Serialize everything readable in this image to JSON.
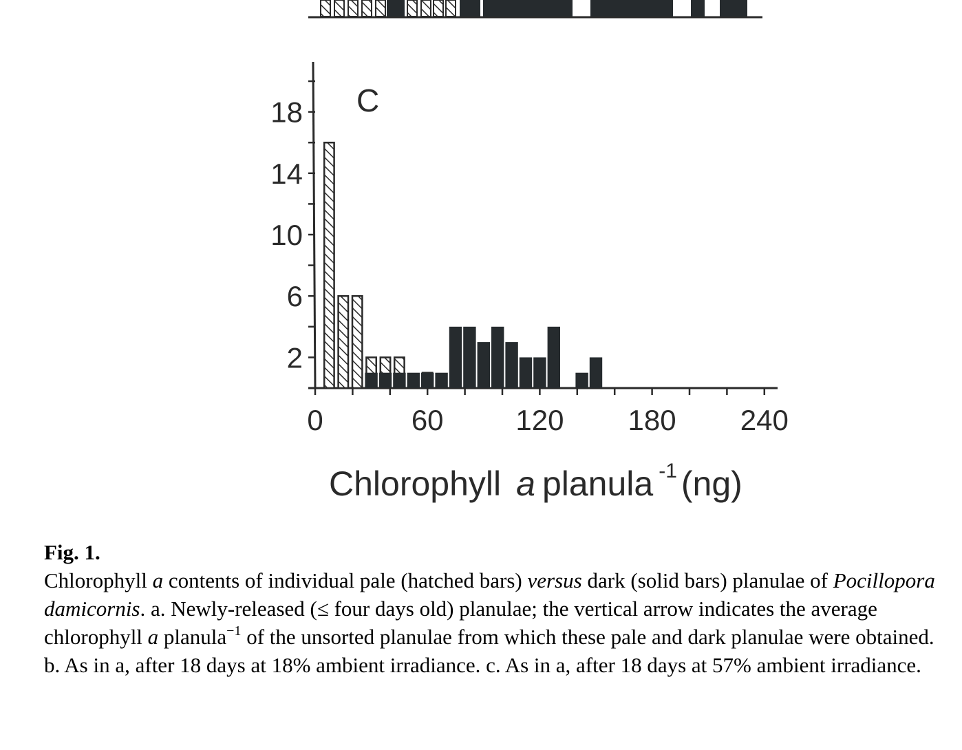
{
  "chart_data": {
    "type": "bar",
    "panel_label": "C",
    "xlabel": "Chlorophyll",
    "xlabel_italic": "a",
    "xlabel_rest": "planula",
    "xlabel_sup": "-1",
    "xlabel_unit": "(ng)",
    "x_ticks": [
      "0",
      "60",
      "120",
      "180",
      "240"
    ],
    "y_ticks": [
      "2",
      "6",
      "10",
      "14",
      "18"
    ],
    "xlim": [
      0,
      245
    ],
    "ylim": [
      0,
      20
    ],
    "bin_width": 7.5,
    "series": [
      {
        "style": "hatched",
        "bins": [
          {
            "x": 7.5,
            "y": 16
          },
          {
            "x": 15,
            "y": 6
          },
          {
            "x": 22.5,
            "y": 6
          },
          {
            "x": 30,
            "y": 2
          },
          {
            "x": 37.5,
            "y": 2
          },
          {
            "x": 45,
            "y": 2
          },
          {
            "x": 60,
            "y": 1
          }
        ]
      },
      {
        "style": "solid",
        "bins": [
          {
            "x": 30,
            "y": 1
          },
          {
            "x": 37.5,
            "y": 1
          },
          {
            "x": 45,
            "y": 1
          },
          {
            "x": 52.5,
            "y": 1
          },
          {
            "x": 60,
            "y": 1
          },
          {
            "x": 67.5,
            "y": 1
          },
          {
            "x": 75,
            "y": 4
          },
          {
            "x": 82.5,
            "y": 4
          },
          {
            "x": 90,
            "y": 3
          },
          {
            "x": 97.5,
            "y": 4
          },
          {
            "x": 105,
            "y": 3
          },
          {
            "x": 112.5,
            "y": 2
          },
          {
            "x": 120,
            "y": 2
          },
          {
            "x": 127.5,
            "y": 4
          },
          {
            "x": 142.5,
            "y": 1
          },
          {
            "x": 150,
            "y": 2
          }
        ]
      }
    ]
  },
  "caption": {
    "label": "Fig. 1.",
    "p1": "Chlorophyll ",
    "i1": "a",
    "p2": " contents of individual pale (hatched bars) ",
    "i2": "versus",
    "p3": " dark (solid bars) planulae of ",
    "i3": "Pocillopora damicornis",
    "p4": ". a. Newly-released (≤ four days old) planulae; the vertical arrow indicates the average chlorophyll ",
    "i4": "a",
    "p5": " planula",
    "sup": "−1",
    "p6": " of the unsorted planulae from which these pale and dark planulae were obtained. b. As in a, after 18 days at 18% ambient irradiance. c. As in a, after 18 days at 57% ambient irradiance."
  }
}
